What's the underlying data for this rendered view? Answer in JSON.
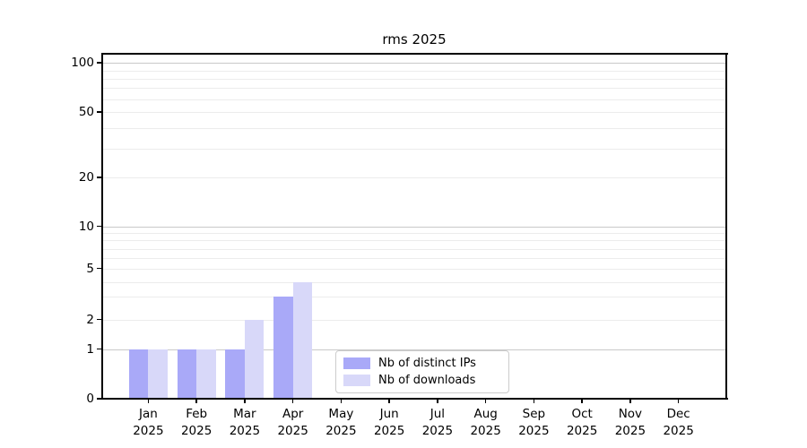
{
  "chart_data": {
    "type": "bar",
    "title": "rms 2025",
    "categories": [
      "Jan",
      "Feb",
      "Mar",
      "Apr",
      "May",
      "Jun",
      "Jul",
      "Aug",
      "Sep",
      "Oct",
      "Nov",
      "Dec"
    ],
    "x_tick_second_line": "2025",
    "series": [
      {
        "name": "Nb of distinct IPs",
        "color": "#a9a9f8",
        "values": [
          1,
          1,
          1,
          3,
          0,
          0,
          0,
          0,
          0,
          0,
          0,
          0
        ]
      },
      {
        "name": "Nb of downloads",
        "color": "#d8d8f9",
        "values": [
          1,
          1,
          2,
          4,
          0,
          0,
          0,
          0,
          0,
          0,
          0,
          0
        ]
      }
    ],
    "yscale": "symlog",
    "yticks": [
      0,
      1,
      2,
      5,
      10,
      20,
      50,
      100
    ],
    "ylim": [
      0,
      113
    ],
    "grid": "horizontal",
    "legend_position": "inside-bottom-center",
    "colors": {
      "major_grid": "#c9c9c9",
      "minor_grid": "#ececec",
      "spine": "#000000",
      "text": "#000000"
    }
  }
}
